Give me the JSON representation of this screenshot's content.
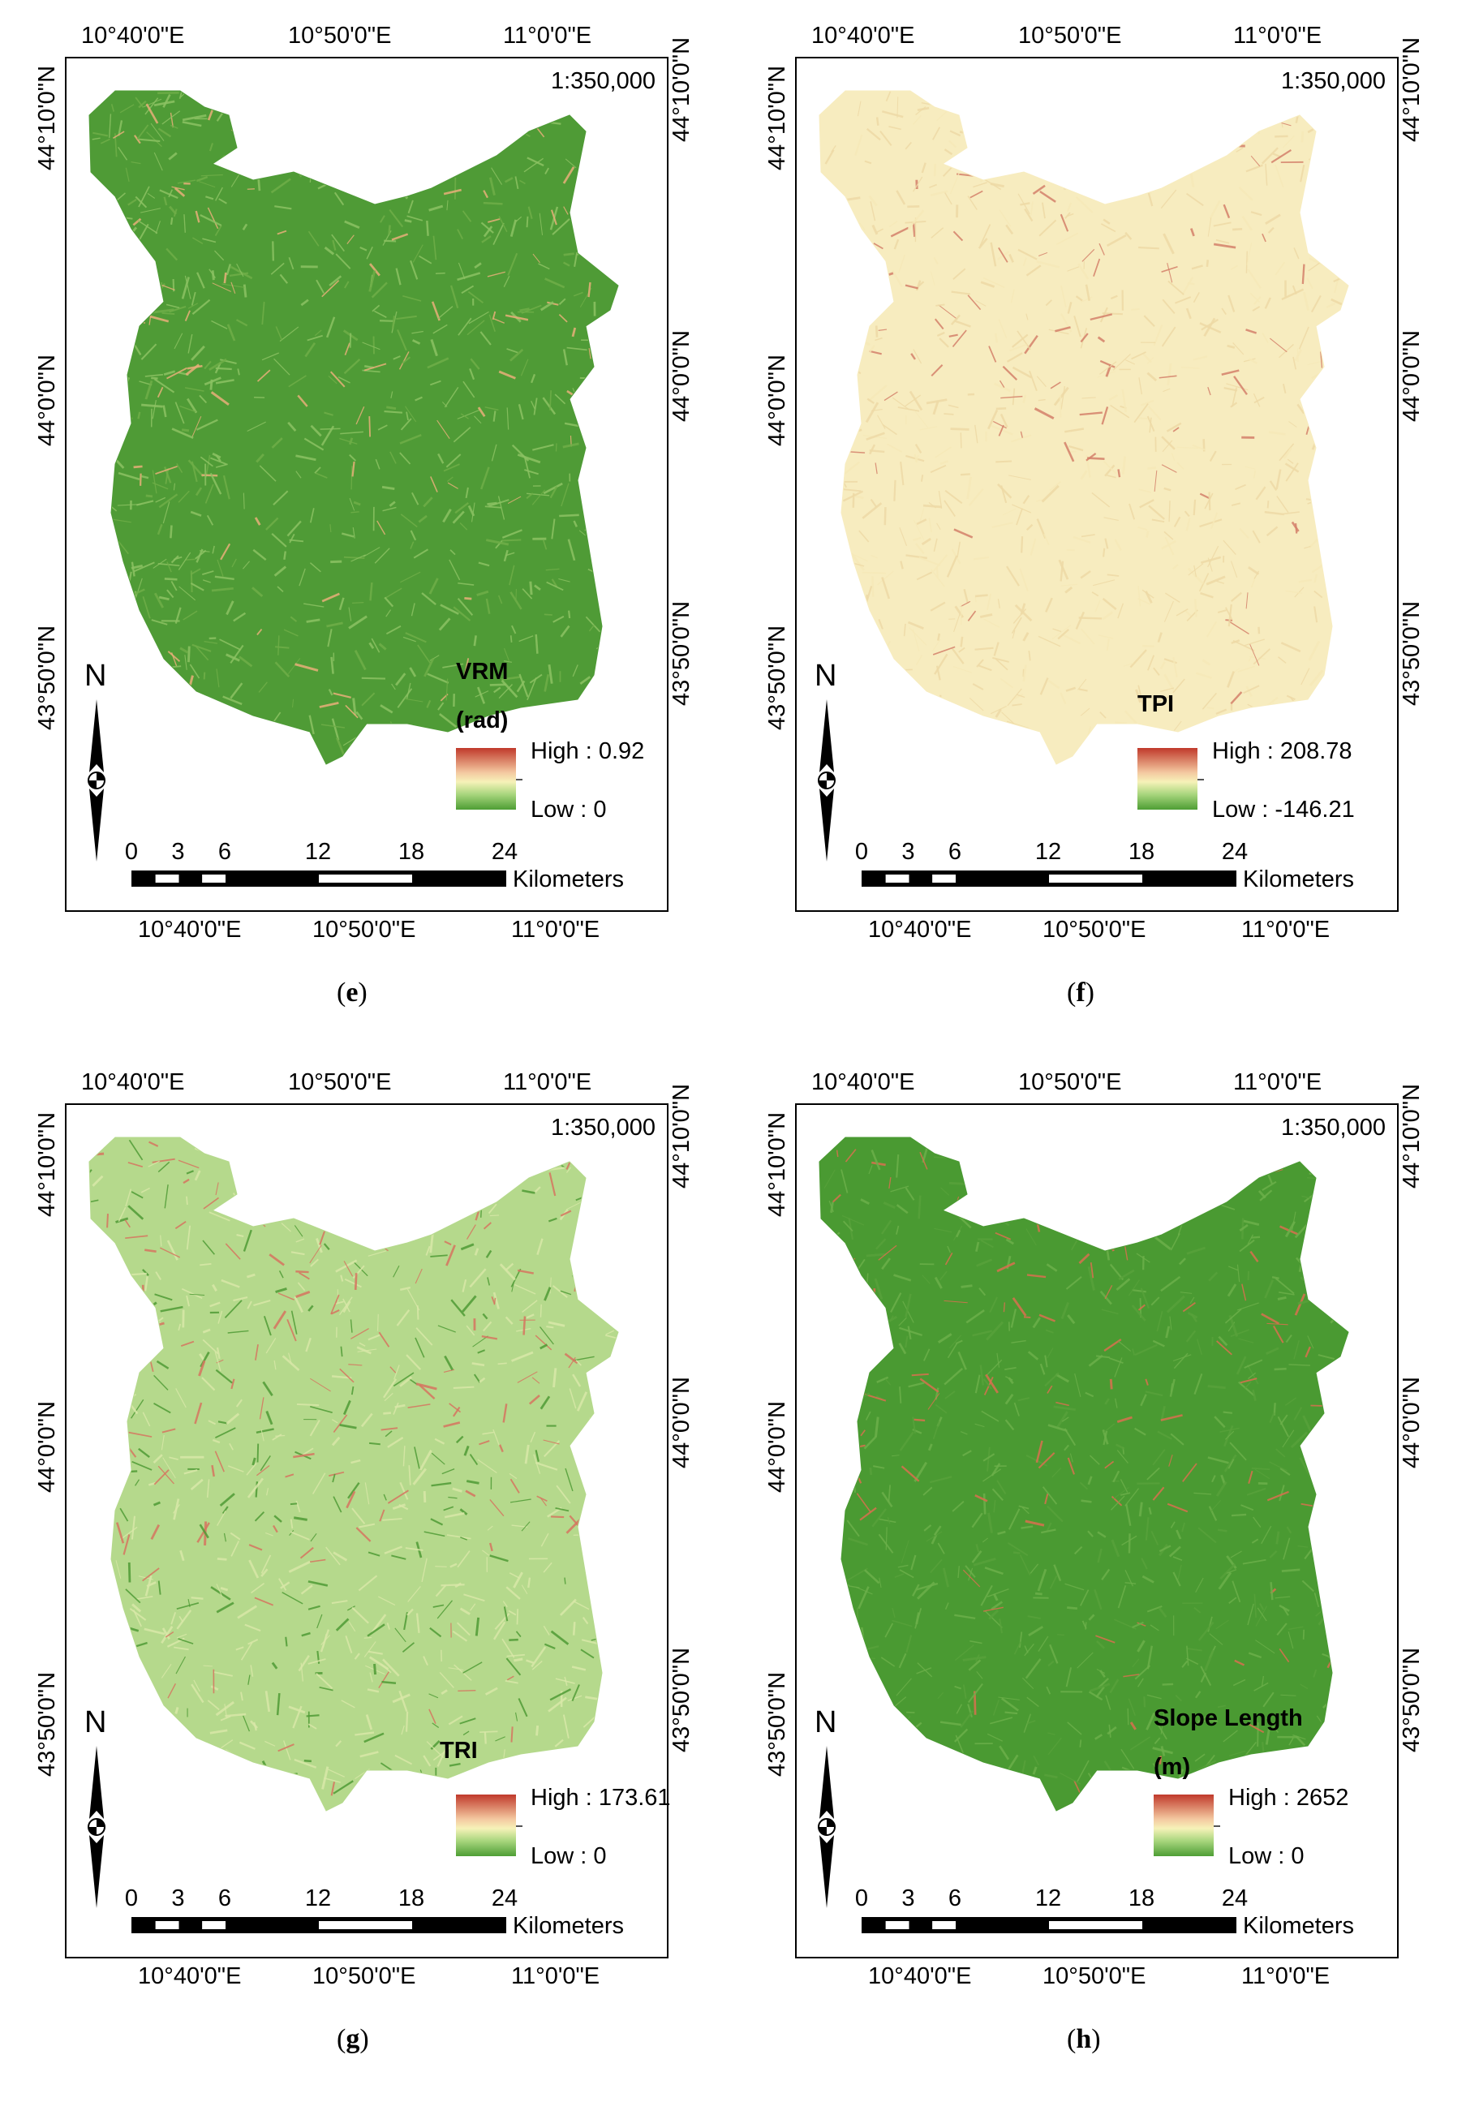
{
  "figure": {
    "panels": [
      {
        "label": "(e)",
        "title_bold": "e",
        "legend_title": "VRM",
        "legend_unit": "(rad)",
        "high_label": "High : 0.92",
        "low_label": "Low : 0",
        "style": "green"
      },
      {
        "label": "(f)",
        "title_bold": "f",
        "legend_title": "TPI",
        "legend_unit": "",
        "high_label": "High : 208.78",
        "low_label": "Low : -146.21",
        "style": "cream"
      },
      {
        "label": "(g)",
        "title_bold": "g",
        "legend_title": "TRI",
        "legend_unit": "",
        "high_label": "High : 173.61",
        "low_label": "Low : 0",
        "style": "lightgreen"
      },
      {
        "label": "(h)",
        "title_bold": "h",
        "legend_title": "Slope Length",
        "legend_unit": "(m)",
        "high_label": "High : 2652",
        "low_label": "Low : 0",
        "style": "darkgreen"
      }
    ],
    "common": {
      "lon_labels": [
        "10°40'0\"E",
        "10°50'0\"E",
        "11°0'0\"E"
      ],
      "lat_labels": [
        "44°10'0\"N",
        "44°0'0\"N",
        "43°50'0\"N"
      ],
      "scale_ratio": "1:350,000",
      "north": "N",
      "scale_ticks": [
        "0",
        "3",
        "6",
        "12",
        "18",
        "24"
      ],
      "scale_unit": "Kilometers"
    },
    "colors": {
      "ramp_high": "#c0392b",
      "ramp_mid": "#f6f2b8",
      "ramp_low": "#4e9e35"
    }
  }
}
